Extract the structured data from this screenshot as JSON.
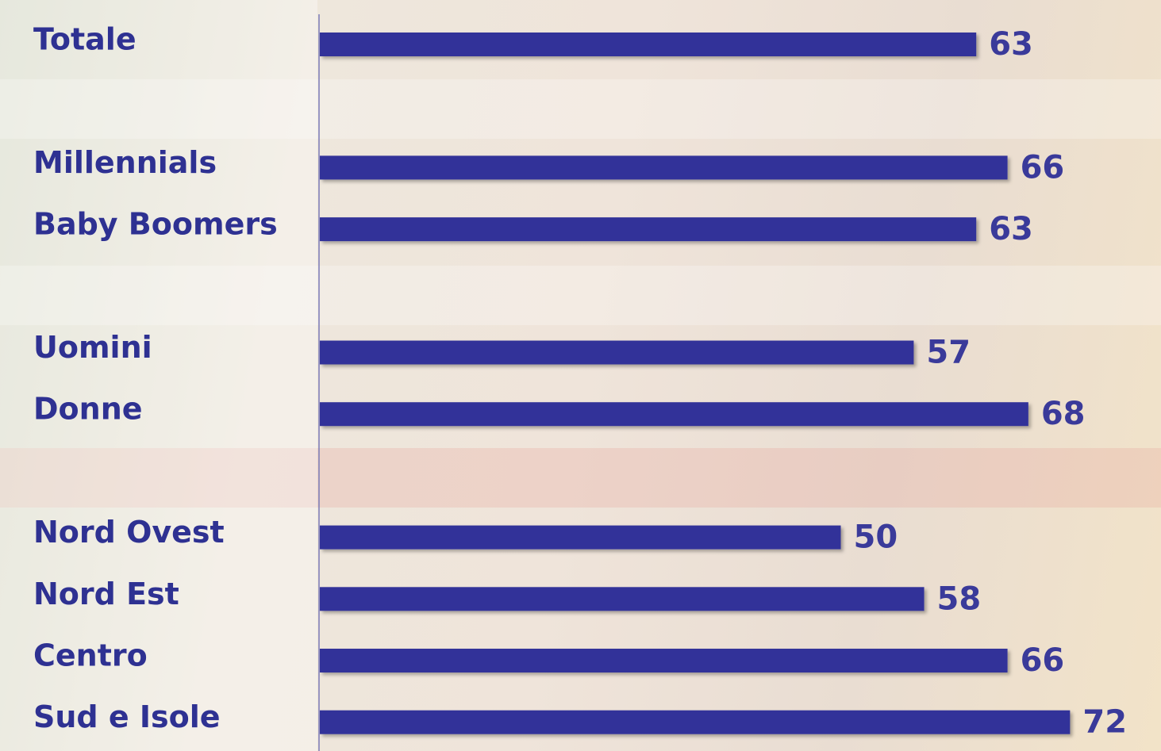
{
  "chart_data": {
    "type": "bar",
    "orientation": "horizontal",
    "categories": [
      "Totale",
      null,
      "Millennials",
      "Baby Boomers",
      null,
      "Uomini",
      "Donne",
      null,
      "Nord Ovest",
      "Nord Est",
      "Centro",
      "Sud e Isole"
    ],
    "values": [
      63,
      null,
      66,
      63,
      null,
      57,
      68,
      null,
      50,
      58,
      66,
      72
    ],
    "color": "#333399"
  }
}
